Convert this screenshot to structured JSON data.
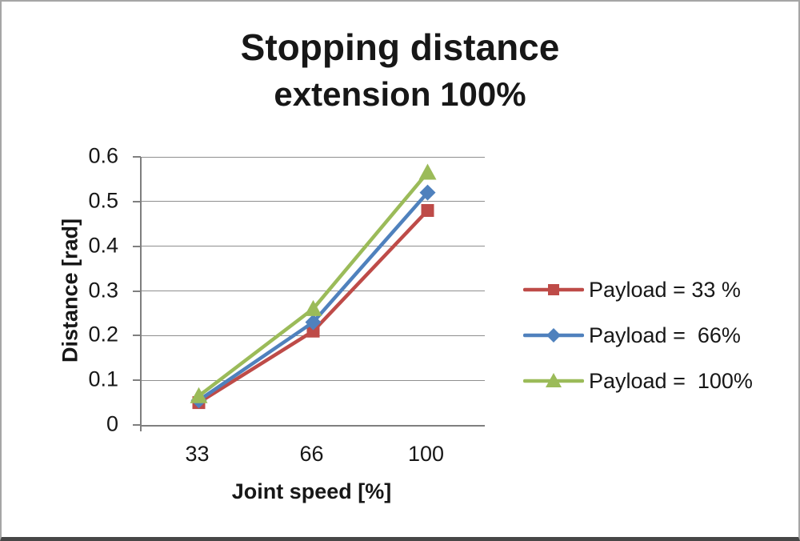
{
  "title": {
    "line1": "Stopping distance",
    "line2": "extension 100%"
  },
  "chart_data": {
    "type": "line",
    "title": "Stopping distance extension 100%",
    "categories": [
      "33",
      "66",
      "100"
    ],
    "series": [
      {
        "name": "Payload = 33 %",
        "values": [
          0.05,
          0.21,
          0.48
        ],
        "color": "#be4b48",
        "marker": "square"
      },
      {
        "name": "Payload =  66%",
        "values": [
          0.055,
          0.23,
          0.52
        ],
        "color": "#4f81bd",
        "marker": "diamond"
      },
      {
        "name": "Payload =  100%",
        "values": [
          0.065,
          0.26,
          0.565
        ],
        "color": "#9bbb59",
        "marker": "triangle"
      }
    ],
    "xlabel": "Joint speed [%]",
    "ylabel": "Distance [rad]",
    "ylim": [
      0,
      0.6
    ],
    "y_ticks": [
      "0",
      "0.1",
      "0.2",
      "0.3",
      "0.4",
      "0.5",
      "0.6"
    ],
    "grid": true,
    "legend_position": "right",
    "colors": {
      "axis": "#7f7f7f",
      "gridline": "#8f8f8f",
      "text": "#171717"
    }
  }
}
